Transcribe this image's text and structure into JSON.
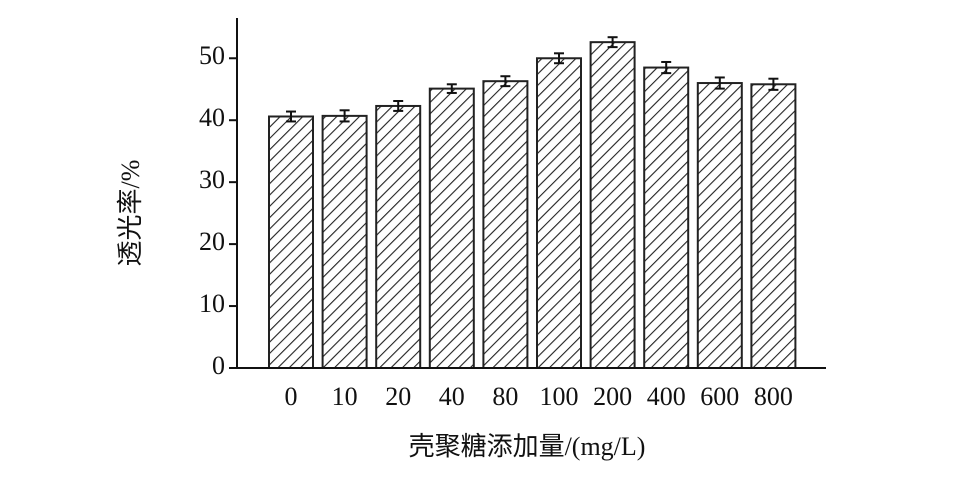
{
  "chart_data": {
    "type": "bar",
    "x_label": "壳聚糖添加量/(mg/L)",
    "y_label": "透光率/%",
    "categories": [
      "0",
      "10",
      "20",
      "40",
      "80",
      "100",
      "200",
      "400",
      "600",
      "800"
    ],
    "values": [
      40.6,
      40.7,
      42.3,
      45.1,
      46.3,
      50.0,
      52.6,
      48.5,
      46.0,
      45.8
    ],
    "errors": [
      0.8,
      0.9,
      0.8,
      0.7,
      0.8,
      0.8,
      0.8,
      0.9,
      0.9,
      0.9
    ],
    "color": "#222222",
    "ylim": [
      0,
      56.5
    ],
    "yticks": [
      0,
      10,
      20,
      30,
      40,
      50
    ],
    "grid": false
  }
}
